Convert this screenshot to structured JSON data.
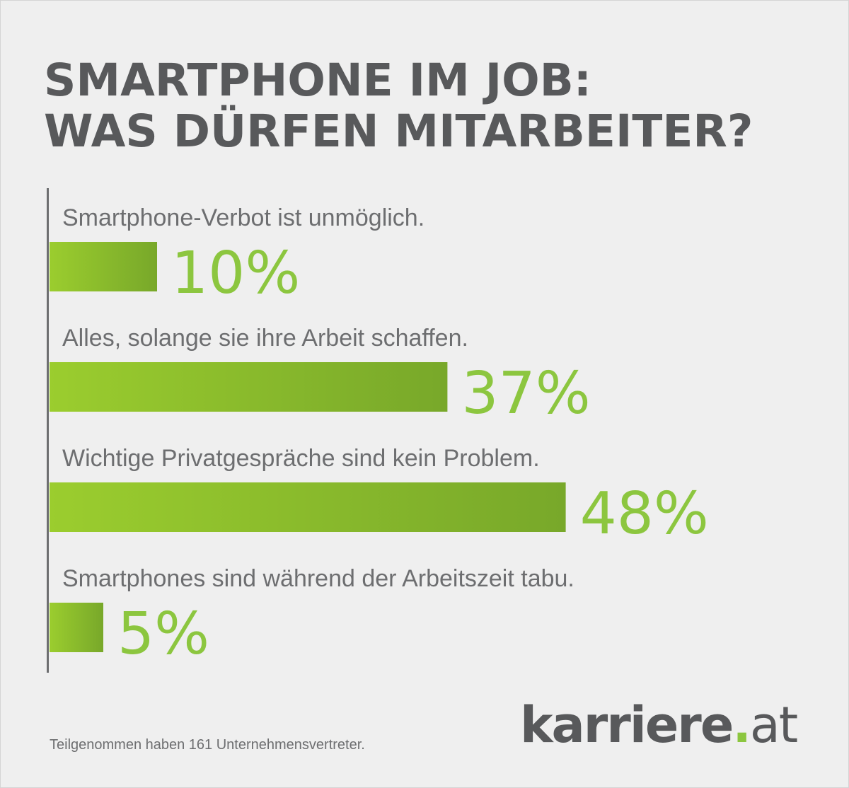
{
  "title_lines": [
    "SMARTPHONE IM JOB:",
    "WAS DÜRFEN MITARBEITER?"
  ],
  "chart_data": {
    "type": "bar",
    "orientation": "horizontal",
    "categories": [
      "Smartphone-Verbot ist unmöglich.",
      "Alles, solange sie ihre Arbeit schaffen.",
      "Wichtige Privatgespräche sind kein Problem.",
      "Smartphones sind während der Arbeitszeit tabu."
    ],
    "values": [
      10,
      37,
      48,
      5
    ],
    "value_labels": [
      "10%",
      "37%",
      "48%",
      "5%"
    ],
    "unit": "%",
    "grid": false,
    "legend": "none"
  },
  "colors": {
    "accent": "#8cc63f",
    "bar_light": "#9bcd2e",
    "bar_dark": "#78a82a",
    "text": "#58595b"
  },
  "footnote": "Teilgenommen haben 161 Unternehmensvertreter.",
  "logo": {
    "name": "karriere",
    "dot": ".",
    "tld": "at"
  }
}
